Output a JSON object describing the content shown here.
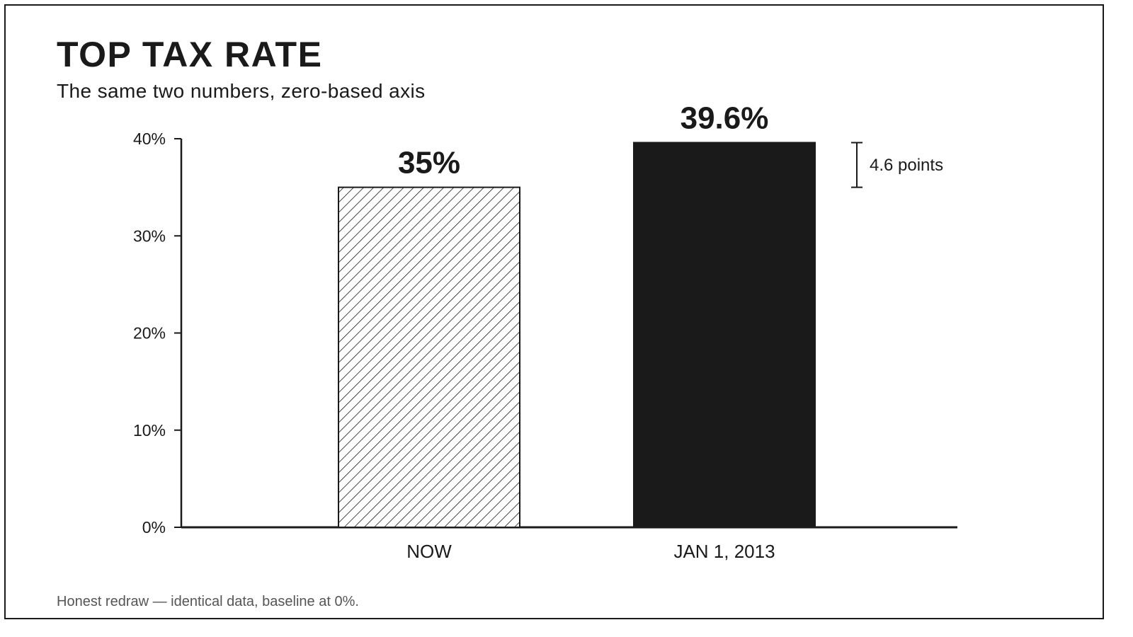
{
  "title": "TOP TAX RATE",
  "subtitle": "The same two numbers, zero-based axis",
  "footnote": "Honest redraw — identical data, baseline at 0%.",
  "colors": {
    "ink": "#1a1a1a",
    "footnote": "#555555",
    "background": "#ffffff"
  },
  "chart_data": {
    "type": "bar",
    "title": "TOP TAX RATE",
    "subtitle": "The same two numbers, zero-based axis",
    "categories": [
      "NOW",
      "JAN 1, 2013"
    ],
    "values": [
      35,
      39.6
    ],
    "value_labels": [
      "35%",
      "39.6%"
    ],
    "bar_fills": [
      "hatched",
      "solid"
    ],
    "ylim": [
      0,
      40
    ],
    "yticks": [
      0,
      10,
      20,
      30,
      40
    ],
    "ytick_labels": [
      "0%",
      "10%",
      "20%",
      "30%",
      "40%"
    ],
    "grid": false,
    "xlabel": "",
    "ylabel": "",
    "annotation": {
      "text": "4.6 points",
      "from": 35,
      "to": 39.6
    }
  }
}
